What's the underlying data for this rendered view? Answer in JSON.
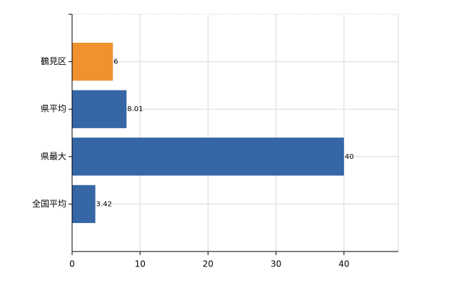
{
  "chart_data": {
    "type": "hbar",
    "categories": [
      "鶴見区",
      "県平均",
      "県最大",
      "全国平均"
    ],
    "values": [
      6,
      8.01,
      40,
      3.42
    ],
    "colors": [
      "#f0922e",
      "#3566a6",
      "#3566a6",
      "#3566a6"
    ],
    "xlim": [
      0,
      48
    ],
    "xticks": [
      0,
      10,
      20,
      30,
      40
    ],
    "grid": true
  }
}
